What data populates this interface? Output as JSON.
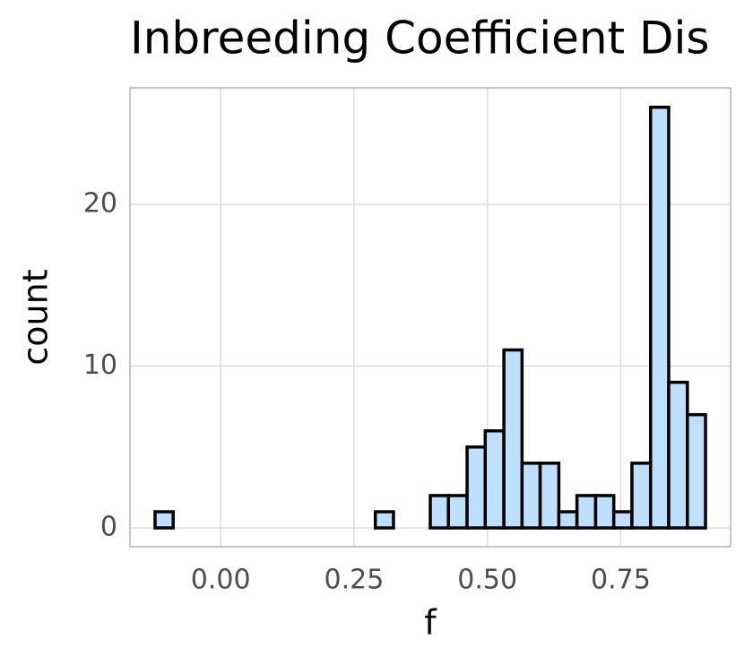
{
  "chart_data": {
    "type": "histogram",
    "title": "Inbreeding Coefficient Dis",
    "x_label": "f",
    "y_label": "count",
    "bins": [
      -0.123,
      -0.089,
      -0.054,
      -0.02,
      0.015,
      0.049,
      0.083,
      0.118,
      0.152,
      0.187,
      0.221,
      0.255,
      0.29,
      0.324,
      0.359,
      0.393,
      0.427,
      0.462,
      0.496,
      0.531,
      0.565,
      0.599,
      0.634,
      0.668,
      0.703,
      0.737,
      0.771,
      0.806,
      0.84,
      0.875,
      0.909
    ],
    "values": [
      1,
      0,
      0,
      0,
      0,
      0,
      0,
      0,
      0,
      0,
      0,
      0,
      1,
      0,
      0,
      2,
      2,
      5,
      6,
      11,
      4,
      4,
      1,
      2,
      2,
      1,
      4,
      26,
      9,
      7
    ],
    "color": "#bfdfff",
    "edge_color": "#000000",
    "xlim": [
      -0.17,
      0.956
    ],
    "ylim": [
      -1.16,
      27.2
    ],
    "xticks": [
      {
        "value": 0,
        "label": "0.00"
      },
      0.25,
      {
        "value": 0.5,
        "label": "0.50"
      },
      0.75
    ],
    "yticks": [
      0,
      10,
      20
    ],
    "grid": true
  }
}
